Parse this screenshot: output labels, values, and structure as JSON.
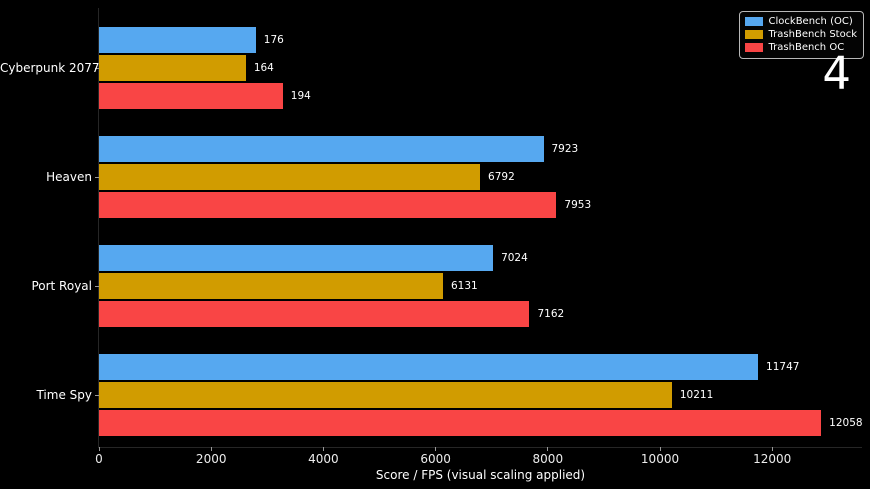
{
  "overlay": {
    "corner_number": "4"
  },
  "colors": {
    "background": "#000000",
    "text": "#ffffff",
    "tick": "#999999",
    "blue": "#56a8f0",
    "gold": "#d19c00",
    "red": "#f94545"
  },
  "chart_data": {
    "type": "bar",
    "orientation": "horizontal",
    "title": "",
    "xlabel": "Score / FPS (visual scaling applied)",
    "ylabel": "",
    "categories": [
      "Cyberpunk 2077",
      "Heaven",
      "Port Royal",
      "Time Spy"
    ],
    "series": [
      {
        "name": "ClockBench (OC)",
        "color": "#56a8f0",
        "values": [
          176,
          7923,
          7024,
          11747
        ],
        "bar_axis_units": [
          2795,
          7923,
          7024,
          11747
        ]
      },
      {
        "name": "TrashBench Stock",
        "color": "#d19c00",
        "values": [
          164,
          6792,
          6131,
          10211
        ],
        "bar_axis_units": [
          2617,
          6792,
          6131,
          10211
        ]
      },
      {
        "name": "TrashBench OC",
        "color": "#f94545",
        "values": [
          194,
          7953,
          7162,
          12058
        ],
        "bar_axis_units": [
          3276,
          8153,
          7673,
          12872
        ]
      }
    ],
    "xticks": [
      0,
      2000,
      4000,
      6000,
      8000,
      10000,
      12000
    ],
    "xlim": [
      0,
      13600
    ],
    "legend_position": "upper right",
    "grid": false
  }
}
